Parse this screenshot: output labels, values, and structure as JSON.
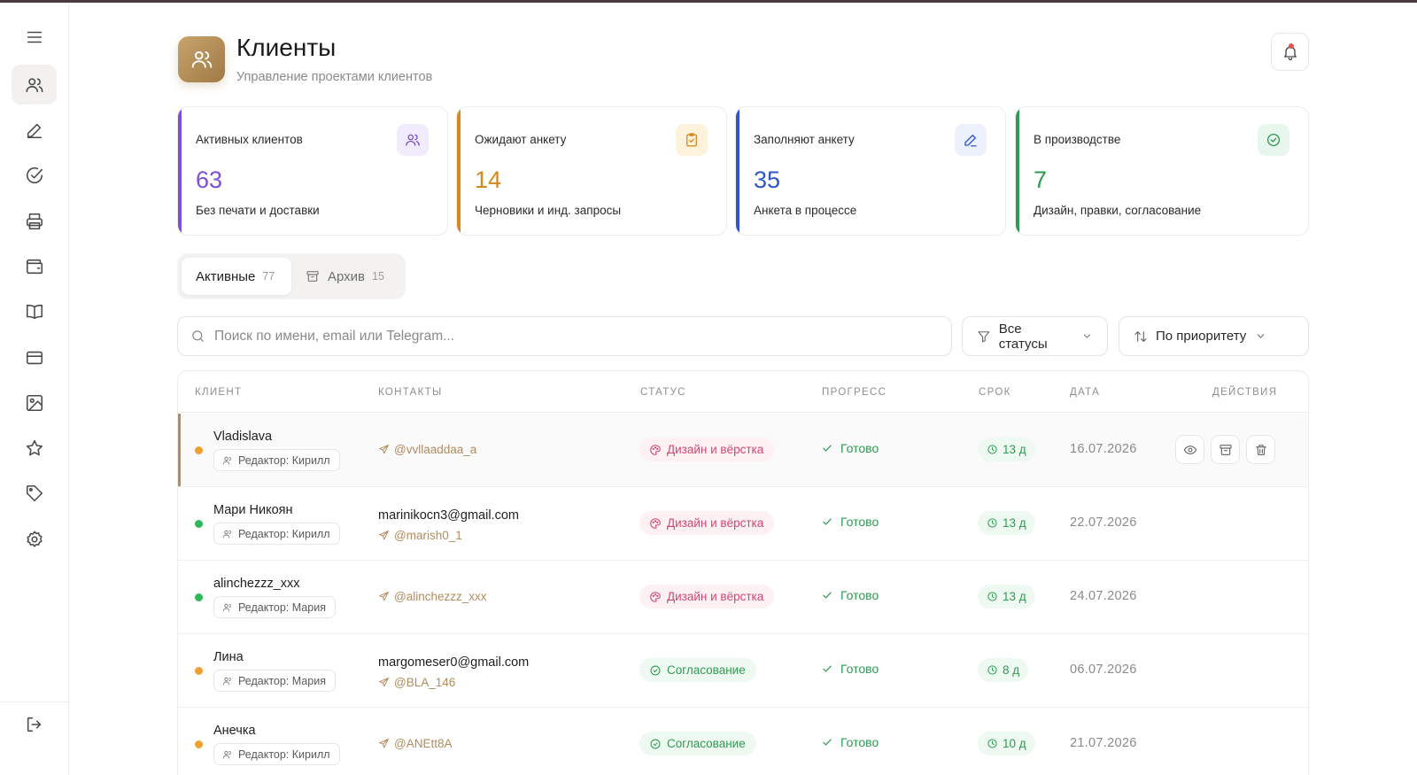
{
  "app": {
    "title": "Клиенты",
    "subtitle": "Управление проектами клиентов",
    "accent": "#b08c5e"
  },
  "sidebar": {
    "items": [
      {
        "icon": "menu-icon"
      },
      {
        "icon": "users-icon",
        "active": true
      },
      {
        "icon": "pen-icon"
      },
      {
        "icon": "check-circle-icon"
      },
      {
        "icon": "printer-icon"
      },
      {
        "icon": "wallet-icon"
      },
      {
        "icon": "book-icon"
      },
      {
        "icon": "card-icon"
      },
      {
        "icon": "image-icon"
      },
      {
        "icon": "star-icon"
      },
      {
        "icon": "tag-icon"
      },
      {
        "icon": "settings-icon"
      },
      {
        "icon": "logout-icon"
      }
    ]
  },
  "stats": [
    {
      "label": "Активных клиентов",
      "value": "63",
      "desc": "Без печати и доставки",
      "color": "#7b4fd6",
      "icon": "users-icon"
    },
    {
      "label": "Ожидают анкету",
      "value": "14",
      "desc": "Черновики и инд. запросы",
      "color": "#d4891e",
      "icon": "clipboard-icon"
    },
    {
      "label": "Заполняют анкету",
      "value": "35",
      "desc": "Анкета в процессе",
      "color": "#2f56c9",
      "icon": "pen-icon"
    },
    {
      "label": "В производстве",
      "value": "7",
      "desc": "Дизайн, правки, согласование",
      "color": "#2f9a52",
      "icon": "check-circle-icon"
    }
  ],
  "tabs": [
    {
      "label": "Активные",
      "count": "77"
    },
    {
      "label": "Архив",
      "count": "15"
    }
  ],
  "search": {
    "placeholder": "Поиск по имени, email или Telegram..."
  },
  "filters": {
    "status": "Все статусы",
    "sort": "По приоритету"
  },
  "table": {
    "headers": [
      "КЛИЕНТ",
      "КОНТАКТЫ",
      "СТАТУС",
      "ПРОГРЕСС",
      "СРОК",
      "ДАТА",
      "ДЕЙСТВИЯ"
    ],
    "rows": [
      {
        "name": "Vladislava",
        "editor": "Редактор: Кирилл",
        "email": "",
        "telegram": "@vvllaaddaa_a",
        "status": "Дизайн и вёрстка",
        "progress": "Готово",
        "deadline": "13 д",
        "date": "16.07.2026",
        "dot": "#f0a030"
      },
      {
        "name": "Мари Никоян",
        "editor": "Редактор: Кирилл",
        "email": "marinikocn3@gmail.com",
        "telegram": "@marish0_1",
        "status": "Дизайн и вёрстка",
        "progress": "Готово",
        "deadline": "13 д",
        "date": "22.07.2026",
        "dot": "#2fb85a"
      },
      {
        "name": "alinchezzz_xxx",
        "editor": "Редактор: Мария",
        "email": "",
        "telegram": "@alinchezzz_xxx",
        "status": "Дизайн и вёрстка",
        "progress": "Готово",
        "deadline": "13 д",
        "date": "24.07.2026",
        "dot": "#2fb85a"
      },
      {
        "name": "Лина",
        "editor": "Редактор: Мария",
        "email": "margomeser0@gmail.com",
        "telegram": "@BLA_146",
        "status": "Согласование",
        "progress": "Готово",
        "deadline": "8 д",
        "date": "06.07.2026",
        "dot": "#f0a030"
      },
      {
        "name": "Анечка",
        "editor": "Редактор: Кирилл",
        "email": "",
        "telegram": "@ANEtt8A",
        "status": "Согласование",
        "progress": "Готово",
        "deadline": "10 д",
        "date": "21.07.2026",
        "dot": "#f0a030"
      }
    ]
  }
}
